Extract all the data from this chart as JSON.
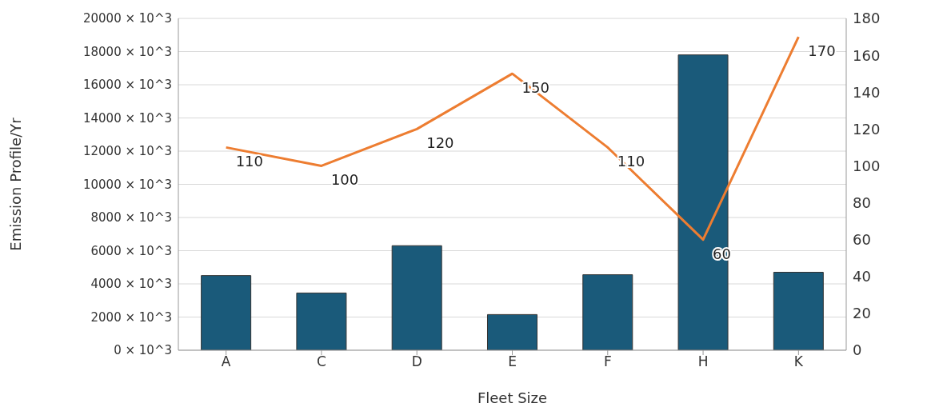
{
  "chart_data": {
    "type": "bar",
    "xlabel": "Fleet Size",
    "ylabel": "Emission Profile/Yr",
    "categories": [
      "A",
      "C",
      "D",
      "E",
      "F",
      "H",
      "K"
    ],
    "series": [
      {
        "color": "#1a5a7a",
        "values": [
          4500000,
          3450000,
          6300000,
          2150000,
          4550000,
          17800000,
          4700000
        ]
      },
      {
        "type": "line",
        "axis": "y2",
        "color": "#ed7d31",
        "values": [
          110,
          100,
          120,
          150,
          110,
          60,
          170
        ],
        "value_labels": [
          "110",
          "100",
          "120",
          "150",
          "110",
          "60",
          "170"
        ]
      }
    ],
    "ylim": [
      0,
      20000000
    ],
    "yticks": [
      {
        "value": 0,
        "label": "0 × 10^3"
      },
      {
        "value": 2000000,
        "label": "2000 × 10^3"
      },
      {
        "value": 4000000,
        "label": "4000 × 10^3"
      },
      {
        "value": 6000000,
        "label": "6000 × 10^3"
      },
      {
        "value": 8000000,
        "label": "8000 × 10^3"
      },
      {
        "value": 10000000,
        "label": "10000 × 10^3"
      },
      {
        "value": 12000000,
        "label": "12000 × 10^3"
      },
      {
        "value": 14000000,
        "label": "14000 × 10^3"
      },
      {
        "value": 16000000,
        "label": "16000 × 10^3"
      },
      {
        "value": 18000000,
        "label": "18000 × 10^3"
      },
      {
        "value": 20000000,
        "label": "20000 × 10^3"
      }
    ],
    "y2lim": [
      0,
      180
    ],
    "y2ticks": [
      0,
      20,
      40,
      60,
      80,
      100,
      120,
      140,
      160,
      180
    ],
    "grid": "y",
    "legend": false,
    "marker": "none",
    "line_style": "solid"
  }
}
